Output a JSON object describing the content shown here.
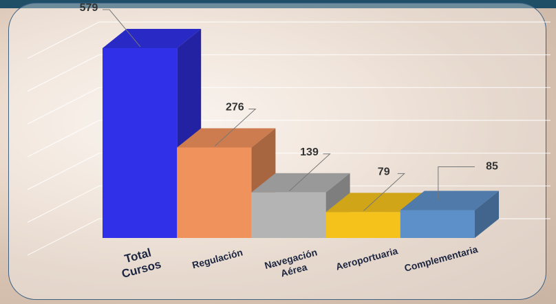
{
  "chart_data": {
    "type": "bar3d",
    "categories": [
      "Total Cursos",
      "Regulación",
      "Navegación Aérea",
      "Aeroportuaria",
      "Complementaria"
    ],
    "values": [
      579,
      276,
      139,
      79,
      85
    ],
    "colors": [
      "#3030e8",
      "#f0925c",
      "#b4b4b4",
      "#f5c21c",
      "#5d90c8"
    ],
    "ylim": [
      0,
      600
    ],
    "yticks": [
      0,
      100,
      200,
      300,
      400,
      500,
      600
    ],
    "grid": true
  }
}
